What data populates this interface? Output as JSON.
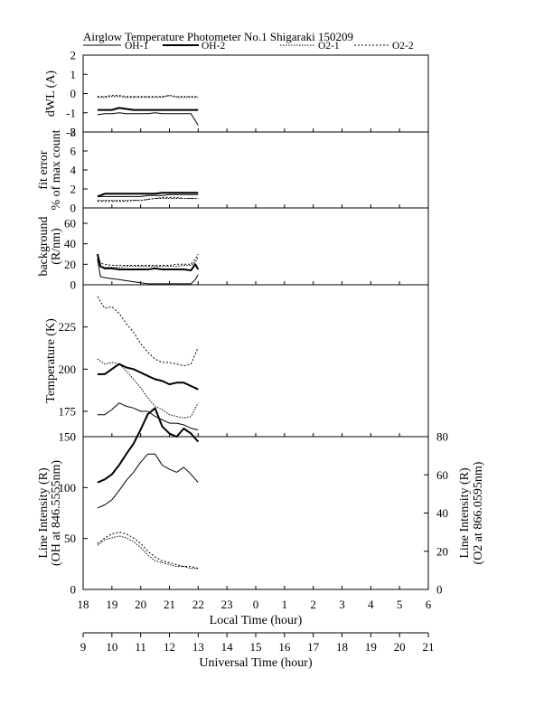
{
  "figure": {
    "title": "Airglow Temperature Photometer No.1  Shigaraki   150209",
    "legend": [
      {
        "name": "OH-1",
        "dash": "solid",
        "width": 1
      },
      {
        "name": "OH-2",
        "dash": "solid",
        "width": 2
      },
      {
        "name": "O2-1",
        "dash": "dotted-fine",
        "width": 1
      },
      {
        "name": "O2-2",
        "dash": "dotted",
        "width": 1
      }
    ],
    "x_axes": {
      "local": {
        "label": "Local Time (hour)",
        "ticks": [
          "18",
          "19",
          "20",
          "21",
          "22",
          "23",
          "0",
          "1",
          "2",
          "3",
          "4",
          "5",
          "6"
        ]
      },
      "universal": {
        "label": "Universal Time (hour)",
        "ticks": [
          "9",
          "10",
          "11",
          "12",
          "13",
          "14",
          "15",
          "16",
          "17",
          "18",
          "19",
          "20",
          "21"
        ]
      },
      "range": [
        18,
        30
      ]
    }
  },
  "chart_data": [
    {
      "type": "line",
      "ylabel": [
        "dWL (A)"
      ],
      "yticks": [
        "2",
        "1",
        "0",
        "-1",
        "-2"
      ],
      "ylim": [
        -2,
        2
      ],
      "x": [
        18.5,
        18.75,
        19.0,
        19.25,
        19.5,
        19.75,
        20.0,
        20.25,
        20.5,
        20.75,
        21.0,
        21.25,
        21.5,
        21.75,
        22.0
      ],
      "series": [
        {
          "name": "OH-1",
          "values": [
            -1.1,
            -1.05,
            -1.05,
            -1.0,
            -1.05,
            -1.05,
            -1.05,
            -1.05,
            -1.0,
            -1.05,
            -1.05,
            -1.05,
            -1.05,
            -1.05,
            -1.65
          ]
        },
        {
          "name": "OH-2",
          "values": [
            -0.85,
            -0.85,
            -0.85,
            -0.75,
            -0.8,
            -0.85,
            -0.85,
            -0.85,
            -0.85,
            -0.85,
            -0.85,
            -0.85,
            -0.85,
            -0.85,
            -0.85
          ]
        },
        {
          "name": "O2-1",
          "values": [
            -0.2,
            -0.2,
            -0.15,
            -0.15,
            -0.2,
            -0.2,
            -0.2,
            -0.2,
            -0.2,
            -0.2,
            -0.1,
            -0.2,
            -0.2,
            -0.2,
            -0.2
          ]
        },
        {
          "name": "O2-2",
          "values": [
            -0.15,
            -0.15,
            -0.1,
            -0.1,
            -0.15,
            -0.15,
            -0.15,
            -0.15,
            -0.15,
            -0.15,
            -0.1,
            -0.15,
            -0.15,
            -0.15,
            -0.15
          ]
        }
      ]
    },
    {
      "type": "line",
      "ylabel": [
        "fit error",
        "% of max count"
      ],
      "yticks": [
        "8",
        "6",
        "4",
        "2",
        "0"
      ],
      "ylim": [
        0,
        8
      ],
      "x": [
        18.5,
        18.75,
        19.0,
        19.25,
        19.5,
        19.75,
        20.0,
        20.25,
        20.5,
        20.75,
        21.0,
        21.25,
        21.5,
        21.75,
        22.0
      ],
      "series": [
        {
          "name": "OH-1",
          "values": [
            1.2,
            1.2,
            1.2,
            1.2,
            1.2,
            1.2,
            1.2,
            1.3,
            1.3,
            1.3,
            1.4,
            1.4,
            1.4,
            1.4,
            1.4
          ]
        },
        {
          "name": "OH-2",
          "values": [
            1.2,
            1.5,
            1.5,
            1.5,
            1.5,
            1.5,
            1.5,
            1.5,
            1.5,
            1.6,
            1.6,
            1.6,
            1.6,
            1.6,
            1.6
          ]
        },
        {
          "name": "O2-1",
          "values": [
            0.8,
            0.8,
            0.8,
            0.8,
            0.8,
            0.8,
            0.8,
            0.9,
            1.0,
            1.0,
            1.0,
            1.0,
            1.0,
            1.0,
            1.0
          ]
        },
        {
          "name": "O2-2",
          "values": [
            0.7,
            0.7,
            0.7,
            0.7,
            0.7,
            0.8,
            0.8,
            0.9,
            1.0,
            1.1,
            1.1,
            1.1,
            1.0,
            1.0,
            1.0
          ]
        }
      ]
    },
    {
      "type": "line",
      "ylabel": [
        "background",
        "(R/nm)"
      ],
      "yticks": [
        "60",
        "40",
        "20",
        "0"
      ],
      "ylim": [
        0,
        75
      ],
      "x": [
        18.5,
        18.6,
        18.75,
        19.0,
        19.25,
        19.5,
        19.75,
        20.0,
        20.25,
        20.5,
        20.75,
        21.0,
        21.25,
        21.5,
        21.75,
        21.9,
        22.0
      ],
      "series": [
        {
          "name": "OH-1",
          "values": [
            25,
            8,
            7,
            6,
            5,
            4,
            3,
            2,
            1,
            1,
            1,
            1,
            1,
            1,
            1,
            5,
            10
          ]
        },
        {
          "name": "OH-2",
          "values": [
            30,
            18,
            16,
            16,
            15,
            15,
            15,
            15,
            15,
            16,
            15,
            15,
            15,
            15,
            14,
            20,
            15
          ]
        },
        {
          "name": "O2-1",
          "values": [
            26,
            18,
            17,
            17,
            17,
            18,
            18,
            18,
            18,
            18,
            18,
            18,
            18,
            19,
            19,
            22,
            27
          ]
        },
        {
          "name": "O2-2",
          "values": [
            30,
            21,
            20,
            19,
            19,
            19,
            19,
            19,
            19,
            19,
            19,
            19,
            20,
            20,
            20,
            25,
            30
          ]
        }
      ]
    },
    {
      "type": "line",
      "ylabel": [
        "Temperature (K)"
      ],
      "yticks": [
        "225",
        "200",
        "175"
      ],
      "ylim": [
        160,
        250
      ],
      "x": [
        18.5,
        18.75,
        19.0,
        19.25,
        19.5,
        19.75,
        20.0,
        20.25,
        20.5,
        20.75,
        21.0,
        21.25,
        21.5,
        21.75,
        22.0
      ],
      "series": [
        {
          "name": "OH-1",
          "values": [
            173,
            173,
            176,
            180,
            178,
            177,
            175,
            175,
            172,
            170,
            168,
            168,
            167,
            165,
            164
          ]
        },
        {
          "name": "OH-2",
          "values": [
            197,
            197,
            200,
            203,
            201,
            200,
            198,
            196,
            194,
            193,
            191,
            192,
            192,
            190,
            188
          ]
        },
        {
          "name": "O2-1",
          "values": [
            206,
            203,
            204,
            203,
            199,
            194,
            189,
            183,
            178,
            176,
            173,
            172,
            171,
            172,
            180
          ]
        },
        {
          "name": "O2-2",
          "values": [
            243,
            236,
            237,
            233,
            227,
            222,
            215,
            210,
            206,
            204,
            204,
            203,
            202,
            203,
            213
          ]
        }
      ]
    },
    {
      "type": "line",
      "ylabel": [
        "Line Intensity (R)",
        "(OH at 846.5555nm)"
      ],
      "y2label": [
        "Line Intensity (R)",
        "(O2 at 866.0595nm)"
      ],
      "yticks": [
        "150",
        "100",
        "50",
        "0"
      ],
      "y2ticks": [
        "80",
        "60",
        "40",
        "20",
        "0"
      ],
      "ylim": [
        0,
        150
      ],
      "y2lim": [
        0,
        80
      ],
      "x": [
        18.5,
        18.75,
        19.0,
        19.25,
        19.5,
        19.75,
        20.0,
        20.25,
        20.5,
        20.75,
        21.0,
        21.25,
        21.5,
        21.75,
        22.0
      ],
      "series": [
        {
          "name": "OH-2",
          "axis": "left",
          "values": [
            105,
            108,
            113,
            122,
            133,
            143,
            157,
            172,
            178,
            160,
            153,
            150,
            158,
            153,
            145
          ]
        },
        {
          "name": "OH-1",
          "axis": "left",
          "values": [
            80,
            83,
            88,
            97,
            107,
            115,
            125,
            133,
            133,
            122,
            118,
            115,
            120,
            113,
            105
          ]
        },
        {
          "name": "O2-1",
          "axis": "right",
          "values": [
            23,
            26,
            27,
            28,
            27,
            25,
            22,
            18,
            15,
            14,
            13,
            12,
            12,
            11,
            11
          ]
        },
        {
          "name": "O2-2",
          "axis": "right",
          "values": [
            24,
            27,
            29,
            30,
            29,
            27,
            24,
            20,
            17,
            15,
            14,
            13,
            12,
            12,
            11
          ]
        }
      ]
    }
  ]
}
